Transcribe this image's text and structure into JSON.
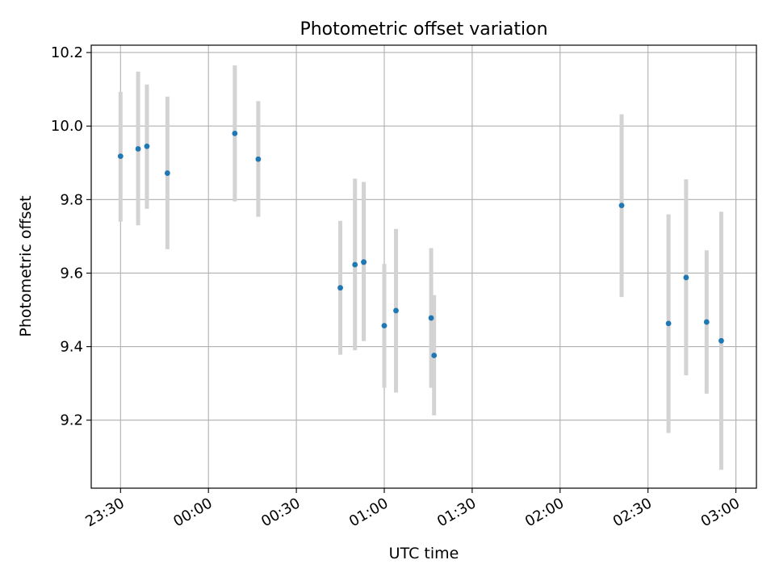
{
  "chart_data": {
    "type": "scatter",
    "title": "Photometric offset variation",
    "xlabel": "UTC time",
    "ylabel": "Photometric offset",
    "x_is_time": true,
    "xlim": [
      "23:20",
      "03:07"
    ],
    "ylim": [
      9.015,
      10.22
    ],
    "x_ticks": [
      "23:30",
      "00:00",
      "00:30",
      "01:00",
      "01:30",
      "02:00",
      "02:30",
      "03:00"
    ],
    "y_ticks": [
      9.2,
      9.4,
      9.6,
      9.8,
      10.0,
      10.2
    ],
    "y_tick_labels": [
      "9.2",
      "9.4",
      "9.6",
      "9.8",
      "10.0",
      "10.2"
    ],
    "grid": true,
    "colors": {
      "marker": "#1f77b4",
      "errorbar": "#d3d3d3",
      "grid": "#b0b0b0"
    },
    "series": [
      {
        "x": [
          "23:30",
          "23:36",
          "23:39",
          "23:46",
          "00:09",
          "00:17",
          "00:45",
          "00:50",
          "00:53",
          "00:53",
          "01:00",
          "01:04",
          "01:16",
          "01:17",
          "02:21",
          "02:37",
          "02:43",
          "02:50",
          "02:55"
        ],
        "y": [
          9.918,
          9.938,
          9.945,
          9.872,
          9.98,
          9.91,
          9.56,
          9.623,
          9.63,
          9.63,
          9.457,
          9.498,
          9.478,
          9.376,
          9.784,
          9.463,
          9.588,
          9.467,
          9.416
        ],
        "yerr_low": [
          9.74,
          9.73,
          9.775,
          9.665,
          9.795,
          9.753,
          9.378,
          9.39,
          9.415,
          9.42,
          9.288,
          9.275,
          9.288,
          9.213,
          9.535,
          9.165,
          9.322,
          9.272,
          9.065
        ],
        "yerr_high": [
          10.093,
          10.148,
          10.113,
          10.08,
          10.165,
          10.068,
          9.742,
          9.857,
          9.848,
          9.843,
          9.625,
          9.72,
          9.668,
          9.54,
          10.032,
          9.76,
          9.855,
          9.662,
          9.767
        ]
      }
    ]
  }
}
